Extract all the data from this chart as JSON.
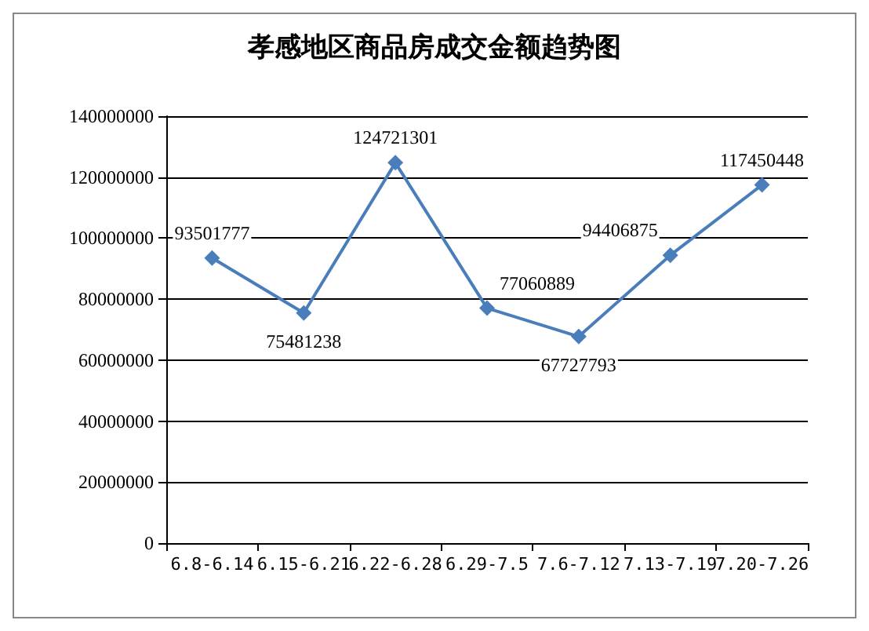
{
  "chart_data": {
    "type": "line",
    "title": "孝感地区商品房成交金额趋势图",
    "categories": [
      "6.8-6.14",
      "6.15-6.21",
      "6.22-6.28",
      "6.29-7.5",
      "7.6-7.12",
      "7.13-7.19",
      "7.20-7.26"
    ],
    "series": [
      {
        "color": "#4a7ebb",
        "values": [
          93501777,
          75481238,
          124721301,
          77060889,
          67727793,
          94406875,
          117450448
        ]
      }
    ],
    "ylim": [
      0,
      140000000
    ],
    "yticks": [
      0,
      20000000,
      40000000,
      60000000,
      80000000,
      100000000,
      120000000,
      140000000
    ],
    "grid": "y",
    "marker": "diamond",
    "line_style": "solid",
    "data_labels": true
  }
}
